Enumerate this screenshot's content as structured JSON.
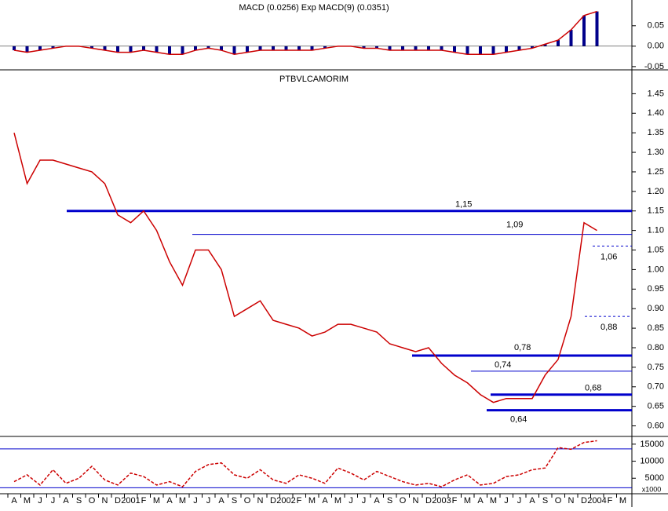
{
  "chart_data": [
    {
      "type": "histogram-line",
      "title": "MACD (0.0256) Exp MACD(9) (0.0351)",
      "series": [
        {
          "name": "MACD",
          "color": "#00008b",
          "values": [
            -0.01,
            -0.015,
            -0.01,
            -0.005,
            0,
            0,
            -0.005,
            -0.01,
            -0.015,
            -0.015,
            -0.01,
            -0.015,
            -0.02,
            -0.02,
            -0.01,
            -0.005,
            -0.01,
            -0.02,
            -0.015,
            -0.01,
            -0.01,
            -0.01,
            -0.01,
            -0.01,
            -0.005,
            0,
            0,
            -0.005,
            -0.005,
            -0.01,
            -0.01,
            -0.01,
            -0.01,
            -0.01,
            -0.015,
            -0.02,
            -0.02,
            -0.02,
            -0.015,
            -0.01,
            -0.005,
            0.005,
            0.015,
            0.04,
            0.075,
            0.085,
            null,
            null
          ]
        }
      ],
      "ylim": [
        -0.056,
        0.113
      ],
      "yticks": [
        {
          "value": 0.05,
          "label": "0.05"
        },
        {
          "value": 0,
          "label": "0.00"
        },
        {
          "value": -0.05,
          "label": "-0.05"
        }
      ]
    },
    {
      "type": "line",
      "title": "PTBVLCAMORIM",
      "series": [
        {
          "name": "PTBVLCAMORIM",
          "color": "#cc0000",
          "values": [
            1.35,
            1.22,
            1.28,
            1.28,
            1.27,
            1.26,
            1.25,
            1.22,
            1.14,
            1.12,
            1.15,
            1.1,
            1.02,
            0.96,
            1.05,
            1.05,
            1,
            0.88,
            0.9,
            0.92,
            0.87,
            0.86,
            0.85,
            0.83,
            0.84,
            0.86,
            0.86,
            0.85,
            0.84,
            0.81,
            0.8,
            0.79,
            0.8,
            0.76,
            0.73,
            0.71,
            0.68,
            0.66,
            0.67,
            0.67,
            0.67,
            0.73,
            0.77,
            0.88,
            1.12,
            1.1,
            null,
            null
          ]
        }
      ],
      "levels": [
        {
          "value": 1.15,
          "label": "1,15",
          "style": "thick"
        },
        {
          "value": 1.09,
          "label": "1,09",
          "style": "thin"
        },
        {
          "value": 1.06,
          "label": "1,06",
          "style": "dashed"
        },
        {
          "value": 0.88,
          "label": "0,88",
          "style": "dashed"
        },
        {
          "value": 0.78,
          "label": "0,78",
          "style": "thick"
        },
        {
          "value": 0.74,
          "label": "0,74",
          "style": "thin"
        },
        {
          "value": 0.68,
          "label": "0,68",
          "style": "thick"
        },
        {
          "value": 0.64,
          "label": "0,64",
          "style": "thick"
        }
      ],
      "level_color": "#0000cc",
      "ylim": [
        0.575,
        1.505
      ],
      "yticks": [
        {
          "value": 0.6,
          "label": "0.60"
        },
        {
          "value": 0.65,
          "label": "0.65"
        },
        {
          "value": 0.7,
          "label": "0.70"
        },
        {
          "value": 0.75,
          "label": "0.75"
        },
        {
          "value": 0.8,
          "label": "0.80"
        },
        {
          "value": 0.85,
          "label": "0.85"
        },
        {
          "value": 0.9,
          "label": "0.90"
        },
        {
          "value": 0.95,
          "label": "0.95"
        },
        {
          "value": 1.0,
          "label": "1.00"
        },
        {
          "value": 1.05,
          "label": "1.05"
        },
        {
          "value": 1.1,
          "label": "1.10"
        },
        {
          "value": 1.15,
          "label": "1.15"
        },
        {
          "value": 1.2,
          "label": "1.20"
        },
        {
          "value": 1.25,
          "label": "1.25"
        },
        {
          "value": 1.3,
          "label": "1.30"
        },
        {
          "value": 1.35,
          "label": "1.35"
        },
        {
          "value": 1.4,
          "label": "1.40"
        },
        {
          "value": 1.45,
          "label": "1.45"
        }
      ]
    },
    {
      "type": "line",
      "unit_label": "x1000",
      "series": [
        {
          "name": "Indicator",
          "color": "#cc0000",
          "values": [
            4000,
            6000,
            3000,
            7500,
            3500,
            5000,
            8500,
            4500,
            3000,
            6500,
            5500,
            3000,
            4000,
            2500,
            7000,
            9000,
            9500,
            6000,
            5000,
            7500,
            4500,
            3500,
            6000,
            5000,
            3500,
            8000,
            6500,
            4500,
            7000,
            5500,
            4000,
            3000,
            3500,
            2500,
            4500,
            6000,
            3000,
            3500,
            5500,
            6000,
            7500,
            8000,
            14000,
            13500,
            15500,
            16000,
            null,
            null
          ]
        }
      ],
      "levels": [
        13600,
        2200
      ],
      "level_color": "#0000cc",
      "ylim": [
        680,
        17270
      ],
      "yticks": [
        5000,
        10000,
        15000
      ]
    },
    {
      "type": "axis",
      "categories": [
        "A",
        "M",
        "J",
        "J",
        "A",
        "S",
        "O",
        "N",
        "D",
        "2001",
        "F",
        "M",
        "A",
        "M",
        "J",
        "J",
        "A",
        "S",
        "O",
        "N",
        "D",
        "2002",
        "F",
        "M",
        "A",
        "M",
        "J",
        "J",
        "A",
        "S",
        "O",
        "N",
        "D",
        "2003",
        "F",
        "M",
        "A",
        "M",
        "J",
        "J",
        "A",
        "S",
        "O",
        "N",
        "D",
        "2004",
        "F",
        "M"
      ]
    }
  ]
}
